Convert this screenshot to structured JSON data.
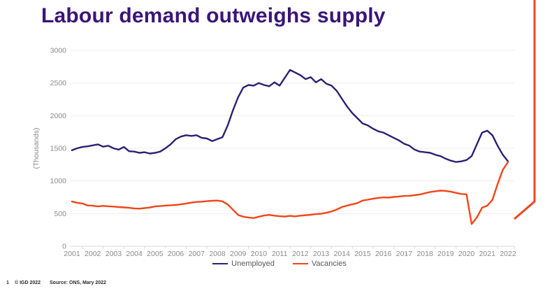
{
  "title": "Labour demand outweighs supply",
  "colors": {
    "title": "#3A1578",
    "axis_text": "#8a8a8a",
    "gridline": "#ededed",
    "axis_line": "#d9d9d9",
    "unemployed_line": "#2E1F73",
    "vacancies_line": "#F04619",
    "decorative_line": "#F04619"
  },
  "chart_data": {
    "type": "line",
    "title": "Labour demand outweighs supply",
    "xlabel": "",
    "ylabel": "(Thousands)",
    "ylim": [
      0,
      3000
    ],
    "yticks": [
      0,
      500,
      1000,
      1500,
      2000,
      2500,
      3000
    ],
    "xticks": [
      2001,
      2002,
      2003,
      2004,
      2005,
      2006,
      2007,
      2008,
      2009,
      2010,
      2011,
      2012,
      2013,
      2014,
      2015,
      2016,
      2017,
      2018,
      2019,
      2020,
      2021,
      2022
    ],
    "grid": true,
    "legend_position": "bottom",
    "x": [
      2001,
      2001.25,
      2001.5,
      2001.75,
      2002,
      2002.25,
      2002.5,
      2002.75,
      2003,
      2003.25,
      2003.5,
      2003.75,
      2004,
      2004.25,
      2004.5,
      2004.75,
      2005,
      2005.25,
      2005.5,
      2005.75,
      2006,
      2006.25,
      2006.5,
      2006.75,
      2007,
      2007.25,
      2007.5,
      2007.75,
      2008,
      2008.25,
      2008.5,
      2008.75,
      2009,
      2009.25,
      2009.5,
      2009.75,
      2010,
      2010.25,
      2010.5,
      2010.75,
      2011,
      2011.25,
      2011.5,
      2011.75,
      2012,
      2012.25,
      2012.5,
      2012.75,
      2013,
      2013.25,
      2013.5,
      2013.75,
      2014,
      2014.25,
      2014.5,
      2014.75,
      2015,
      2015.25,
      2015.5,
      2015.75,
      2016,
      2016.25,
      2016.5,
      2016.75,
      2017,
      2017.25,
      2017.5,
      2017.75,
      2018,
      2018.25,
      2018.5,
      2018.75,
      2019,
      2019.25,
      2019.5,
      2019.75,
      2020,
      2020.25,
      2020.5,
      2020.75,
      2021,
      2021.25,
      2021.5,
      2021.75,
      2022
    ],
    "series": [
      {
        "name": "Unemployed",
        "color": "#2E1F73",
        "values": [
          1470,
          1500,
          1520,
          1530,
          1545,
          1560,
          1525,
          1540,
          1500,
          1480,
          1520,
          1455,
          1450,
          1430,
          1440,
          1420,
          1430,
          1450,
          1500,
          1560,
          1640,
          1680,
          1700,
          1690,
          1700,
          1660,
          1650,
          1610,
          1640,
          1670,
          1850,
          2080,
          2280,
          2430,
          2470,
          2460,
          2500,
          2470,
          2450,
          2510,
          2460,
          2580,
          2700,
          2660,
          2620,
          2560,
          2590,
          2510,
          2560,
          2490,
          2460,
          2380,
          2260,
          2140,
          2040,
          1960,
          1880,
          1850,
          1800,
          1760,
          1740,
          1700,
          1660,
          1620,
          1570,
          1540,
          1480,
          1450,
          1440,
          1430,
          1400,
          1380,
          1340,
          1310,
          1290,
          1300,
          1320,
          1380,
          1560,
          1740,
          1770,
          1700,
          1540,
          1400,
          1300
        ]
      },
      {
        "name": "Vacancies",
        "color": "#F04619",
        "values": [
          685,
          665,
          655,
          625,
          620,
          610,
          618,
          612,
          608,
          600,
          595,
          588,
          580,
          575,
          585,
          592,
          610,
          615,
          622,
          628,
          632,
          642,
          655,
          668,
          678,
          682,
          690,
          696,
          700,
          688,
          640,
          560,
          480,
          452,
          440,
          432,
          452,
          470,
          480,
          468,
          460,
          455,
          465,
          458,
          468,
          475,
          482,
          492,
          498,
          512,
          532,
          562,
          600,
          622,
          642,
          662,
          700,
          712,
          728,
          740,
          748,
          745,
          755,
          762,
          770,
          772,
          782,
          792,
          812,
          830,
          842,
          852,
          848,
          835,
          818,
          800,
          795,
          340,
          440,
          590,
          620,
          710,
          950,
          1170,
          1290
        ]
      }
    ]
  },
  "footer": {
    "page_number": "1",
    "copyright": "© IGD 2022",
    "source": "Source: ONS, Mary 2022"
  }
}
